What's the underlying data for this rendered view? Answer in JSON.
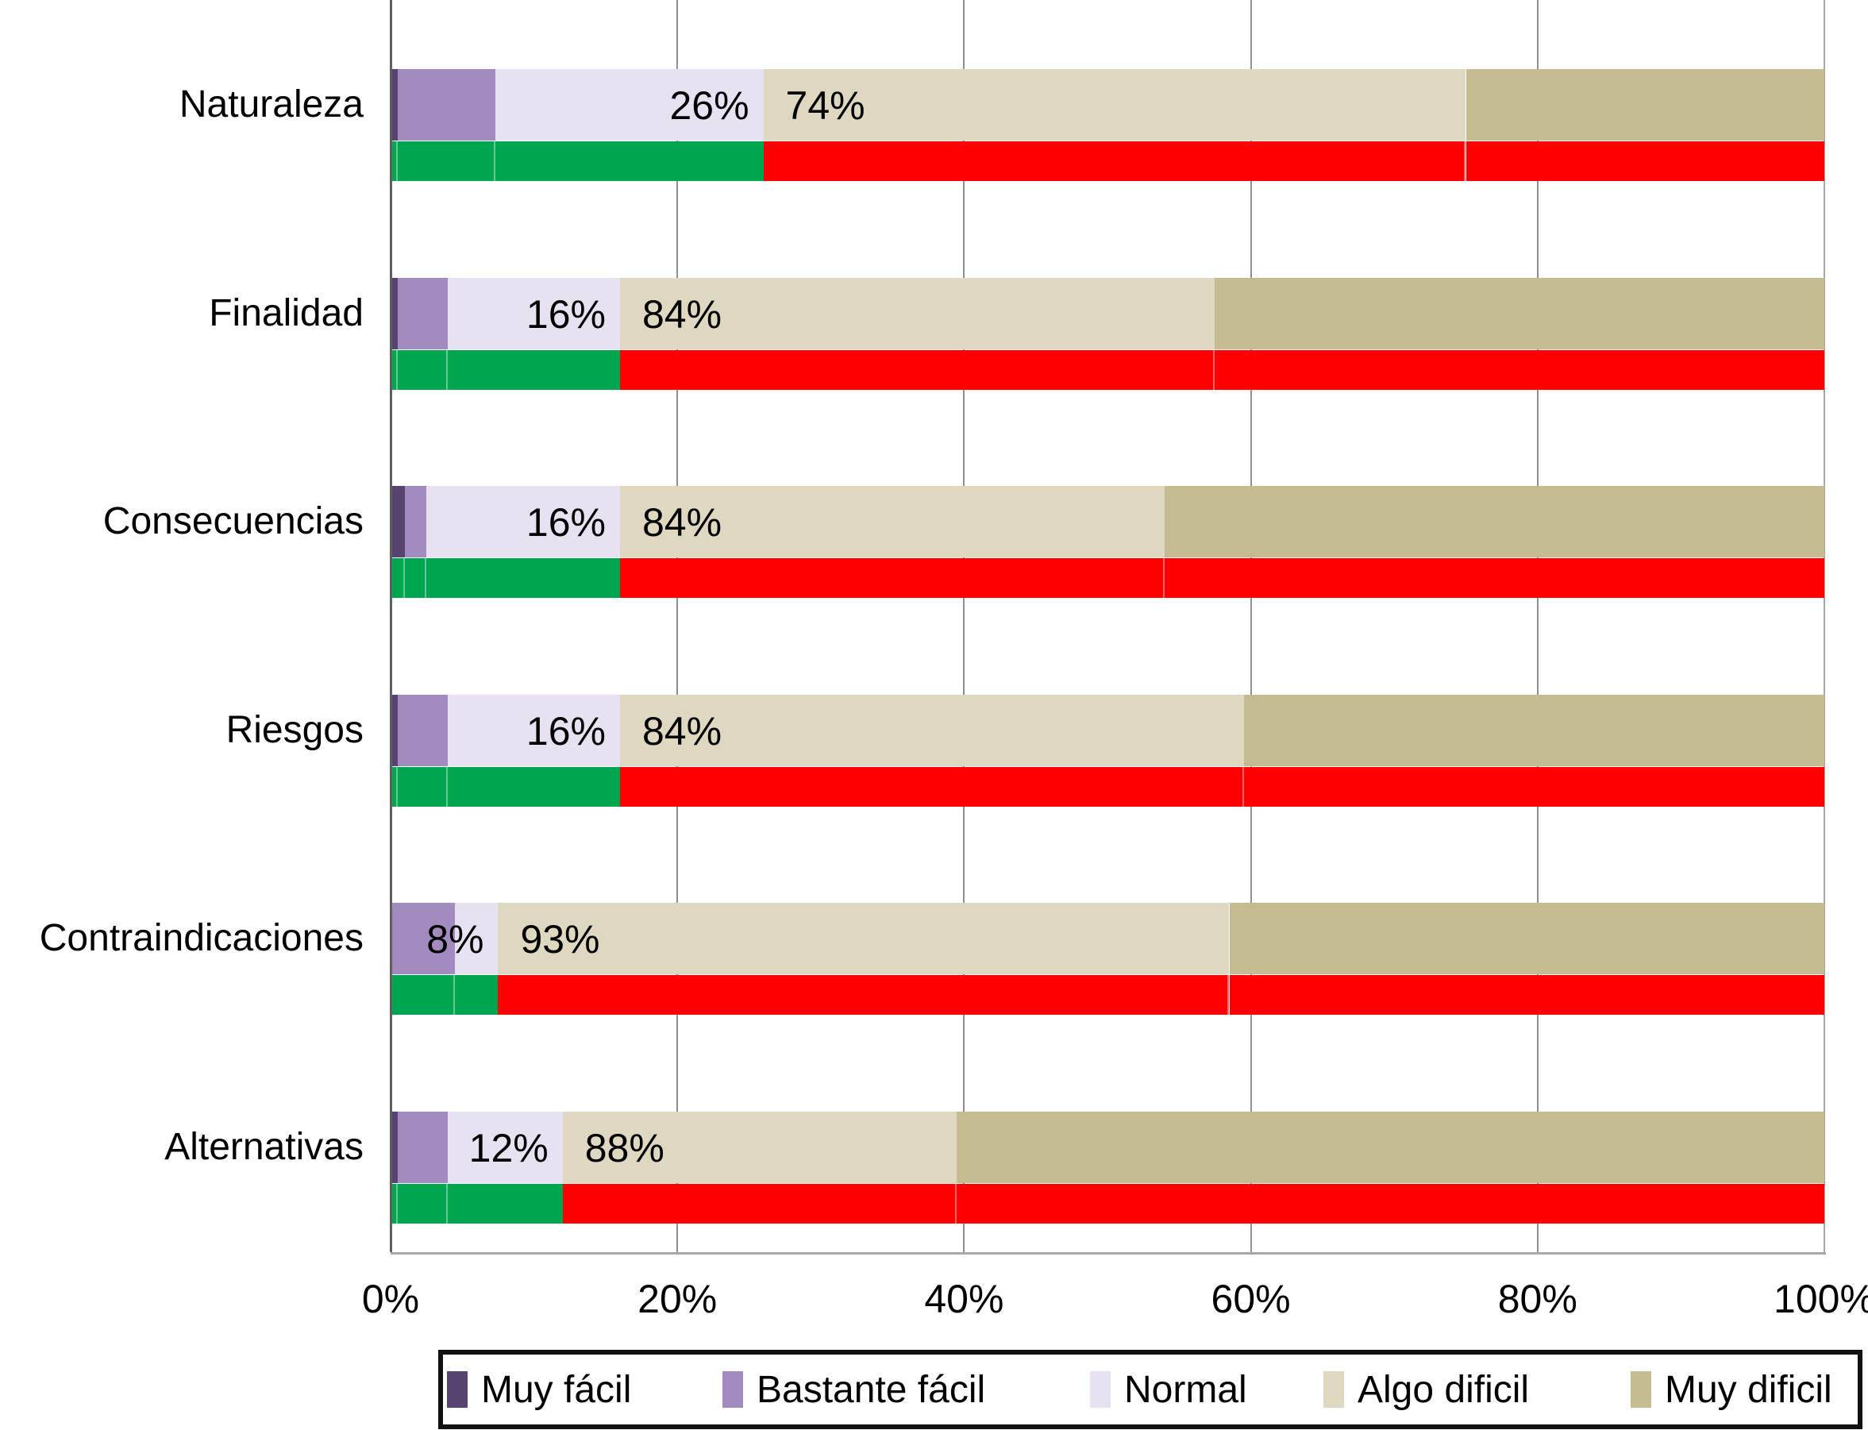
{
  "chart_data": {
    "type": "bar",
    "orientation": "horizontal",
    "stacked": true,
    "title": "",
    "categories": [
      "Naturaleza",
      "Finalidad",
      "Consecuencias",
      "Riesgos",
      "Contraindicaciones",
      "Alternativas"
    ],
    "series": [
      {
        "name": "Muy fácil",
        "color": "#57436f",
        "values": [
          0.5,
          0.5,
          1.0,
          0.5,
          0.0,
          0.5
        ]
      },
      {
        "name": "Bastante fácil",
        "color": "#a18bbf",
        "values": [
          6.8,
          3.5,
          1.5,
          3.5,
          4.5,
          3.5
        ]
      },
      {
        "name": "Normal",
        "color": "#e7e1f1",
        "values": [
          18.7,
          12.0,
          13.5,
          12.0,
          3.0,
          8.0
        ]
      },
      {
        "name": "Algo dificil",
        "color": "#ded8c1",
        "values": [
          49.0,
          41.5,
          38.0,
          43.5,
          51.0,
          27.5
        ]
      },
      {
        "name": "Muy dificil",
        "color": "#c4bb90",
        "values": [
          25.0,
          42.5,
          46.0,
          40.5,
          41.5,
          60.5
        ]
      }
    ],
    "summary_bars": {
      "easy_color": "#00a550",
      "difficult_color": "#fe0000",
      "easy_values": [
        26,
        16,
        16,
        16,
        7.5,
        12
      ],
      "difficult_values": [
        74,
        84,
        84,
        84,
        92.5,
        88
      ]
    },
    "bar_value_labels": [
      {
        "easy": "26%",
        "difficult": "74%"
      },
      {
        "easy": "16%",
        "difficult": "84%"
      },
      {
        "easy": "16%",
        "difficult": "84%"
      },
      {
        "easy": "16%",
        "difficult": "84%"
      },
      {
        "easy": "8%",
        "difficult": "93%"
      },
      {
        "easy": "12%",
        "difficult": "88%"
      }
    ],
    "legend_items": [
      "Muy fácil",
      "Bastante fácil",
      "Normal",
      "Algo dificil",
      "Muy dificil"
    ],
    "legend_position": "bottom",
    "x_ticks": [
      "0%",
      "20%",
      "40%",
      "60%",
      "80%",
      "100%"
    ],
    "xlim": [
      0,
      100
    ],
    "grid": true
  },
  "colors": {
    "background": "#ffffff",
    "gridline": "#8f8f8f",
    "axis_line": "#5f5f5f",
    "plot_border": "#a8a8a8",
    "text": "#000000",
    "legend_border": "#111111"
  }
}
